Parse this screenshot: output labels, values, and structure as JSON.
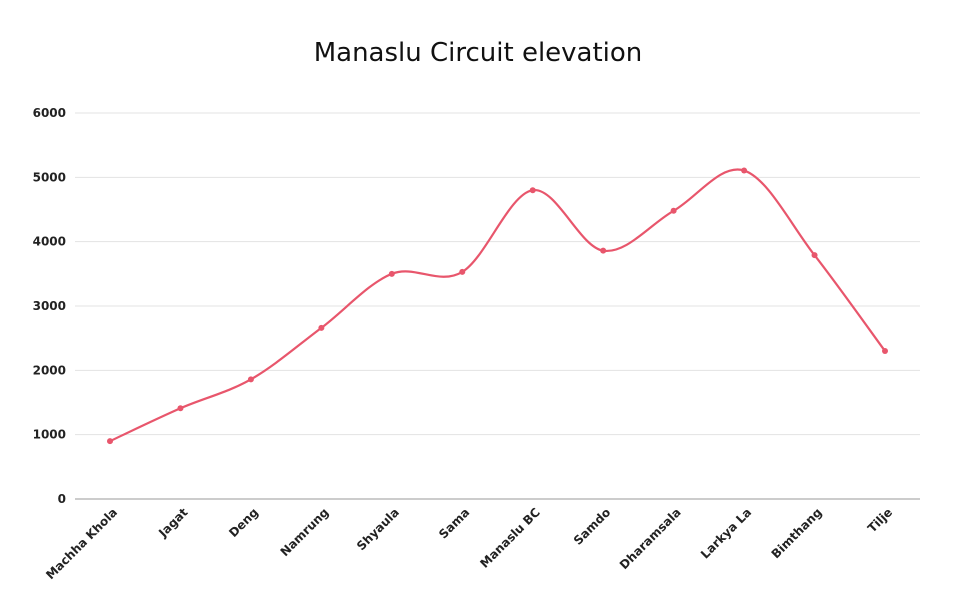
{
  "chart_data": {
    "type": "line",
    "title": "Manaslu Circuit elevation",
    "xlabel": "",
    "ylabel": "",
    "categories": [
      "Machha Khola",
      "Jagat",
      "Deng",
      "Namrung",
      "Shyaula",
      "Sama",
      "Manaslu BC",
      "Samdo",
      "Dharamsala",
      "Larkya La",
      "Bimthang",
      "Tilje"
    ],
    "series": [
      {
        "values": [
          900,
          1410,
          1860,
          2660,
          3500,
          3530,
          4800,
          3860,
          4480,
          5106,
          3790,
          2300
        ]
      }
    ],
    "ylim": [
      0,
      6000
    ],
    "yticks": [
      0,
      1000,
      2000,
      3000,
      4000,
      5000,
      6000
    ],
    "smooth": true,
    "grid": true,
    "legend": "none",
    "line_color": "#e8566c"
  }
}
